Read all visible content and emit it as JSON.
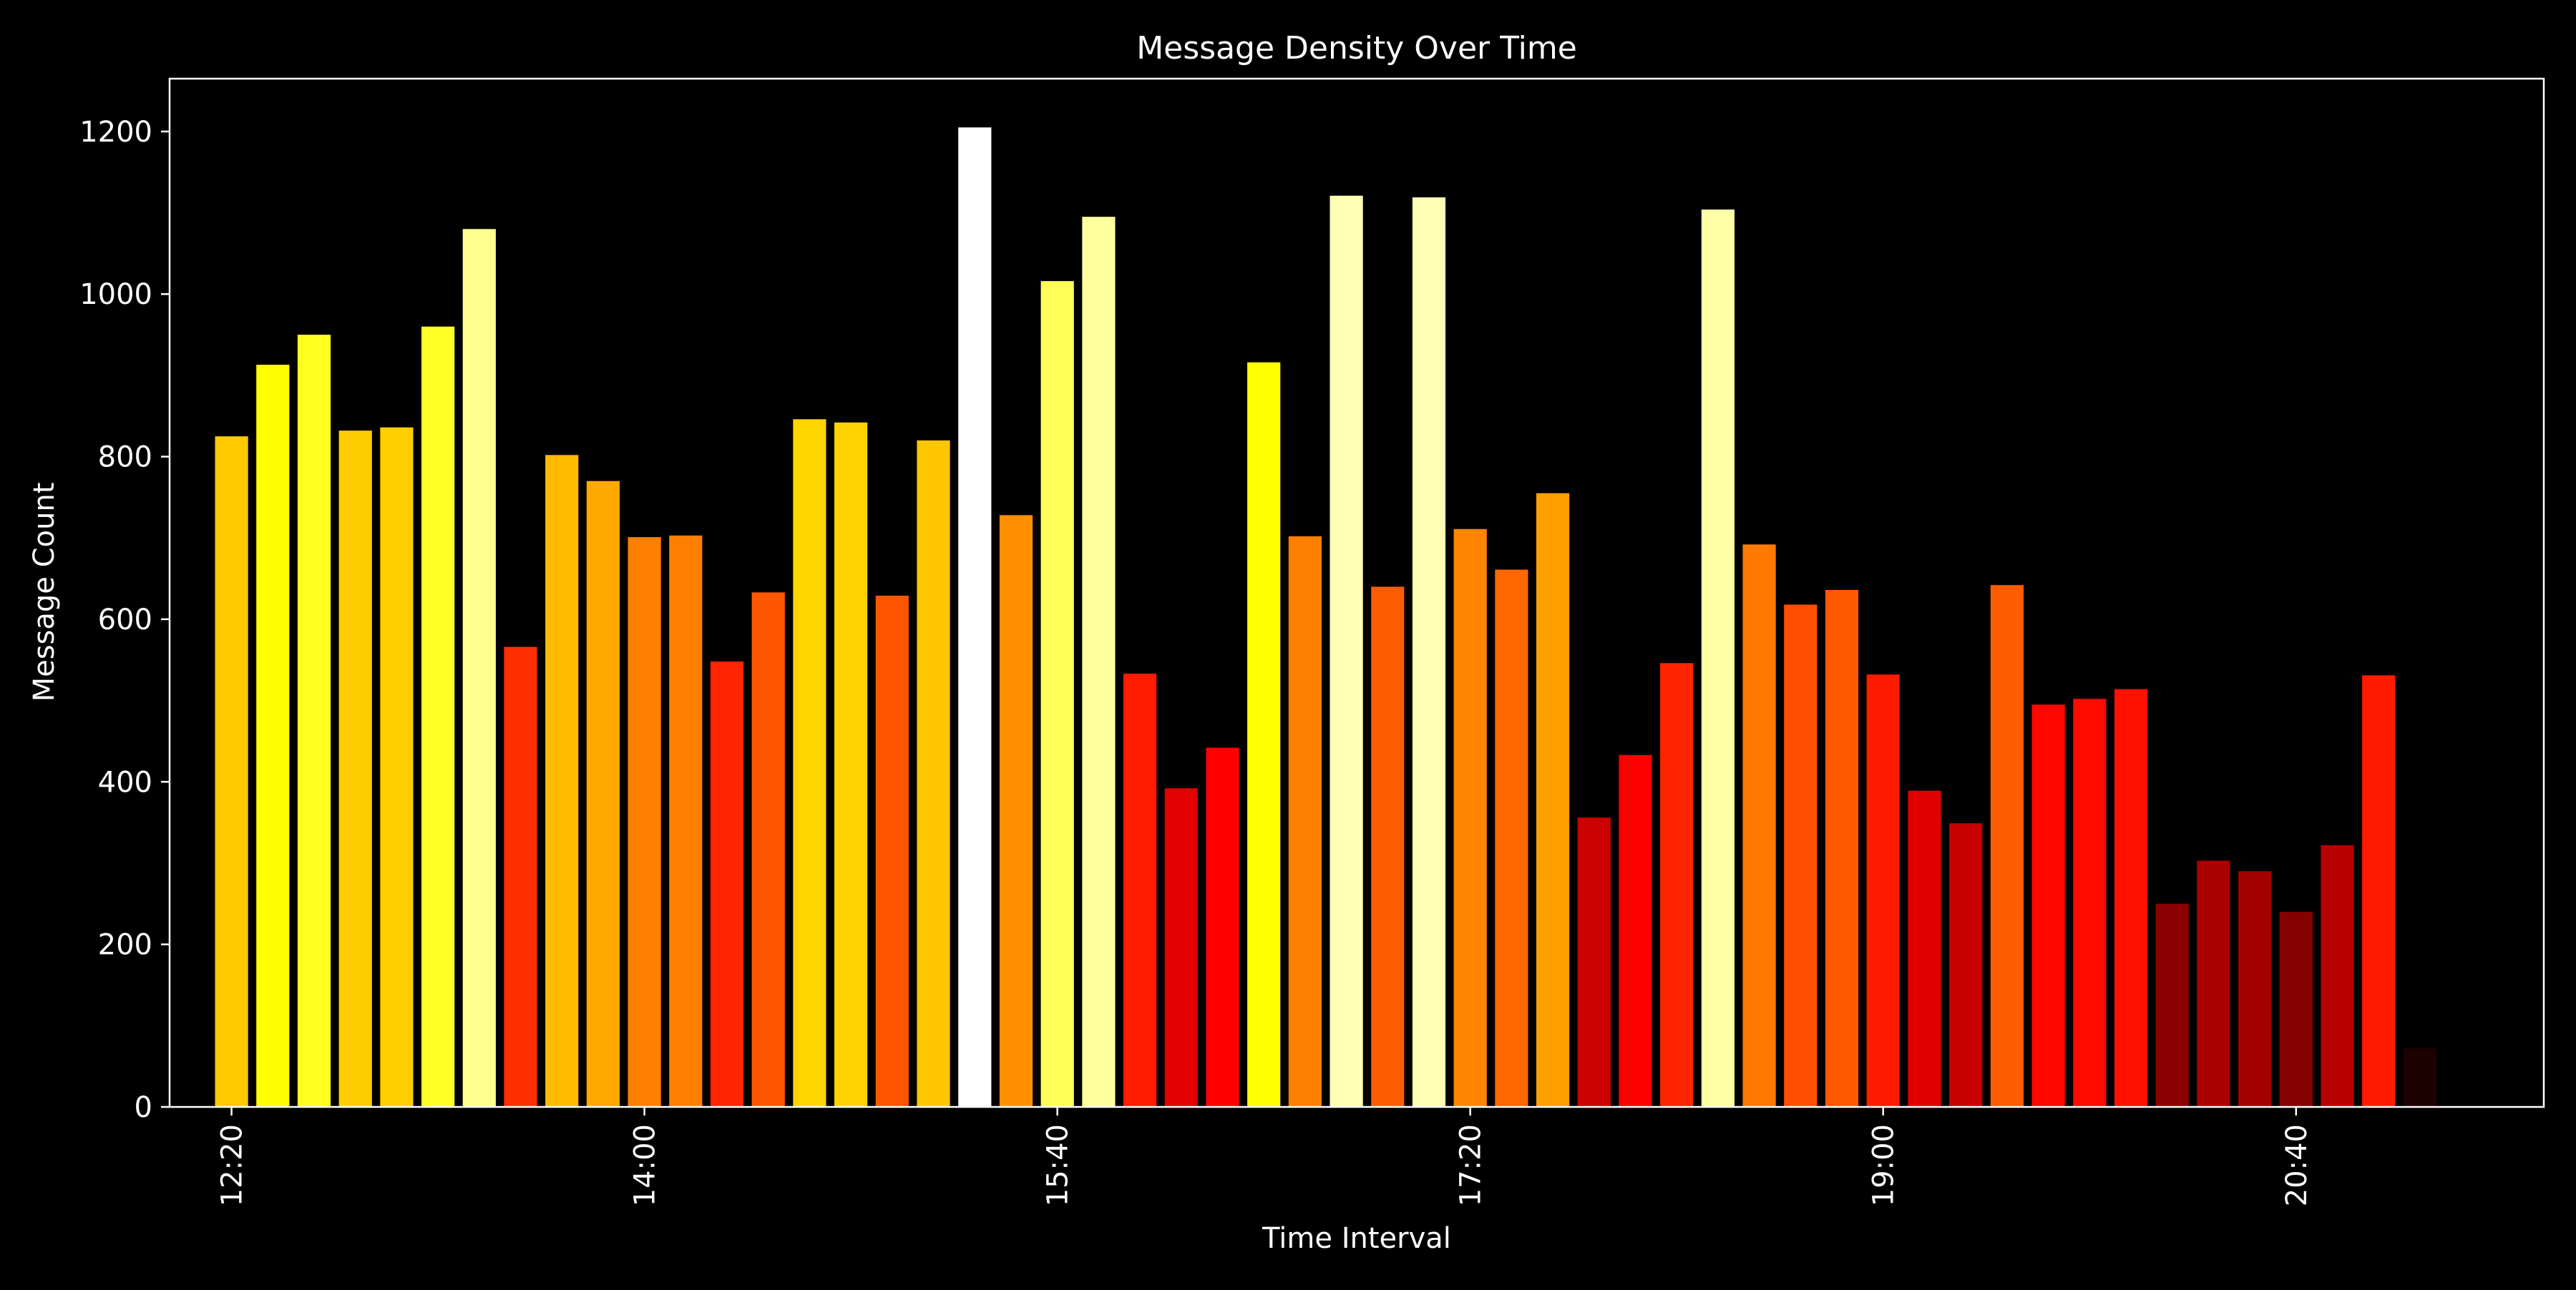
{
  "chart_data": {
    "type": "bar",
    "title": "Message Density Over Time",
    "xlabel": "Time Interval",
    "ylabel": "Message Count",
    "background": "#000000",
    "foreground": "#ffffff",
    "colormap": "hot",
    "x_start": "12:20",
    "x_step_minutes": 10,
    "xlim": [
      "12:05",
      "21:40"
    ],
    "ylim": [
      0,
      1265
    ],
    "yticks": [
      0,
      200,
      400,
      600,
      800,
      1000,
      1200
    ],
    "xticks": [
      "12:20",
      "14:00",
      "15:40",
      "17:20",
      "19:00",
      "20:40"
    ],
    "categories": [
      "12:20",
      "12:30",
      "12:40",
      "12:50",
      "13:00",
      "13:10",
      "13:20",
      "13:30",
      "13:40",
      "13:50",
      "14:00",
      "14:10",
      "14:20",
      "14:30",
      "14:40",
      "14:50",
      "15:00",
      "15:10",
      "15:20",
      "15:30",
      "15:40",
      "15:50",
      "16:00",
      "16:10",
      "16:20",
      "16:30",
      "16:40",
      "16:50",
      "17:00",
      "17:10",
      "17:20",
      "17:30",
      "17:40",
      "17:50",
      "18:00",
      "18:10",
      "18:20",
      "18:30",
      "18:40",
      "18:50",
      "19:00",
      "19:10",
      "19:20",
      "19:30",
      "19:40",
      "19:50",
      "20:00",
      "20:10",
      "20:20",
      "20:30",
      "20:40",
      "20:50",
      "21:00",
      "21:10"
    ],
    "values": [
      825,
      913,
      950,
      832,
      836,
      960,
      1080,
      566,
      802,
      770,
      701,
      703,
      548,
      633,
      846,
      842,
      629,
      820,
      1205,
      728,
      1016,
      1095,
      533,
      392,
      442,
      916,
      702,
      1121,
      640,
      1119,
      711,
      661,
      755,
      356,
      433,
      546,
      1104,
      692,
      618,
      636,
      532,
      389,
      349,
      642,
      495,
      502,
      514,
      250,
      303,
      290,
      240,
      322,
      531,
      72
    ]
  }
}
